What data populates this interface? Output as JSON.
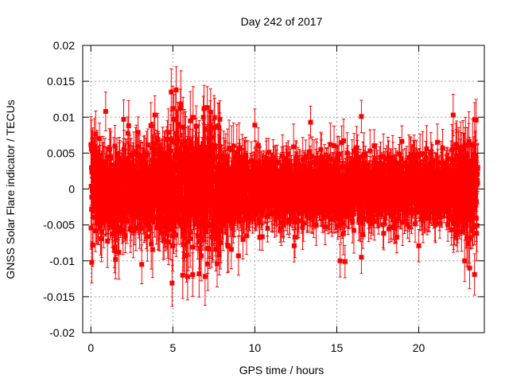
{
  "chart_data": {
    "type": "scatter",
    "title": "Day 242 of 2017",
    "xlabel": "GPS time / hours",
    "ylabel": "GNSS Solar Flare indicator / TECUs",
    "xlim": [
      -0.5,
      24.0
    ],
    "ylim": [
      -0.02,
      0.02
    ],
    "xticks": [
      0,
      5,
      10,
      15,
      20
    ],
    "xtick_labels": [
      "0",
      "5",
      "10",
      "15",
      "20"
    ],
    "yticks": [
      -0.02,
      -0.015,
      -0.01,
      -0.005,
      0,
      0.005,
      0.01,
      0.015,
      0.02
    ],
    "ytick_labels": [
      "-0.02",
      "-0.015",
      "-0.01",
      "-0.005",
      "0",
      "0.005",
      "0.01",
      "0.015",
      "0.02"
    ],
    "grid": true,
    "series": [
      {
        "color": "#ff0000",
        "marker": "square",
        "error_bars": true,
        "x_start": 0,
        "x_end": 23.6,
        "spread_segments": [
          {
            "x": [
              0,
              0.5
            ],
            "sigma": 0.0048,
            "err": 0.0032
          },
          {
            "x": [
              0.5,
              4.5
            ],
            "sigma": 0.0042,
            "err": 0.003
          },
          {
            "x": [
              4.5,
              8.0
            ],
            "sigma": 0.0058,
            "err": 0.0036
          },
          {
            "x": [
              8.0,
              9.5
            ],
            "sigma": 0.004,
            "err": 0.003
          },
          {
            "x": [
              9.5,
              22.0
            ],
            "sigma": 0.0032,
            "err": 0.0025
          },
          {
            "x": [
              22.0,
              23.6
            ],
            "sigma": 0.0046,
            "err": 0.0032
          }
        ],
        "highlights": [
          {
            "x": 0.05,
            "y": -0.0102
          },
          {
            "x": 0.9,
            "y": 0.0108
          },
          {
            "x": 1.5,
            "y": -0.0098
          },
          {
            "x": 2.0,
            "y": 0.0097
          },
          {
            "x": 3.1,
            "y": -0.0105
          },
          {
            "x": 3.9,
            "y": 0.0103
          },
          {
            "x": 4.9,
            "y": 0.0135
          },
          {
            "x": 5.2,
            "y": 0.0138
          },
          {
            "x": 4.95,
            "y": -0.0131
          },
          {
            "x": 5.6,
            "y": -0.012
          },
          {
            "x": 5.9,
            "y": -0.0122
          },
          {
            "x": 6.6,
            "y": -0.0118
          },
          {
            "x": 6.9,
            "y": 0.0112
          },
          {
            "x": 7.3,
            "y": 0.0107
          },
          {
            "x": 7.7,
            "y": -0.0104
          },
          {
            "x": 9.0,
            "y": -0.0093
          },
          {
            "x": 10.0,
            "y": 0.0089
          },
          {
            "x": 12.4,
            "y": -0.0079
          },
          {
            "x": 13.4,
            "y": 0.0093
          },
          {
            "x": 15.2,
            "y": -0.01
          },
          {
            "x": 15.5,
            "y": -0.0101
          },
          {
            "x": 16.5,
            "y": 0.0101
          },
          {
            "x": 16.5,
            "y": -0.0095
          },
          {
            "x": 20.0,
            "y": -0.0079
          },
          {
            "x": 22.1,
            "y": 0.0103
          },
          {
            "x": 22.8,
            "y": -0.01
          },
          {
            "x": 23.1,
            "y": -0.011
          },
          {
            "x": 23.4,
            "y": -0.0119
          },
          {
            "x": 23.5,
            "y": 0.0096
          }
        ]
      }
    ]
  }
}
